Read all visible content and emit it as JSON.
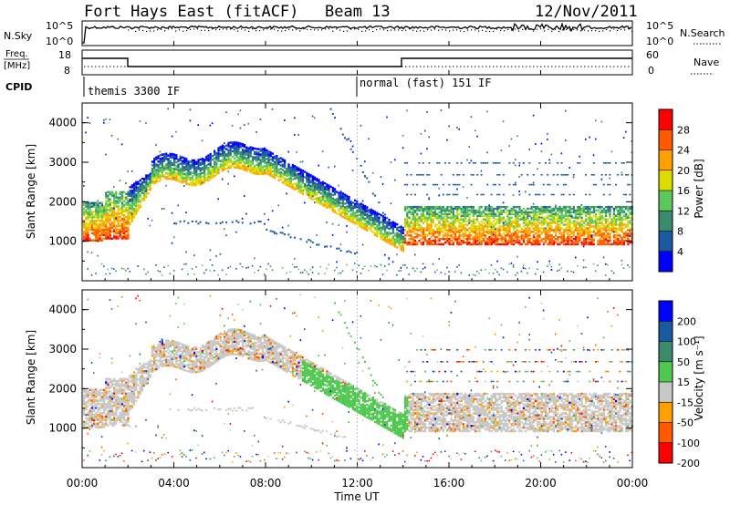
{
  "header": {
    "station": "Fort Hays East (fitACF)",
    "beam": "Beam 13",
    "date": "12/Nov/2011"
  },
  "noise_panel": {
    "left_label": "N.Sky",
    "right_label": "N.Search",
    "left_ticks": [
      "10^5",
      "10^0"
    ],
    "right_ticks": [
      "10^5",
      "10^0"
    ]
  },
  "freq_panel": {
    "left_label_line1": "Freq.",
    "left_label_line2": "[MHz]",
    "right_label": "Nave",
    "left_ticks": [
      "18",
      "8"
    ],
    "right_ticks": [
      "60",
      "0"
    ]
  },
  "cpid": {
    "label": "CPID",
    "segments": [
      {
        "start_ut": "00:00",
        "name": "themis 3300 IF"
      },
      {
        "start_ut": "12:00",
        "name": "normal (fast) 151 IF"
      }
    ]
  },
  "chart_data": [
    {
      "type": "heatmap",
      "name": "power",
      "ylabel": "Slant Range [km]",
      "xlabel": "Time UT",
      "x_range_ut": [
        0,
        24
      ],
      "ylim_km": [
        0,
        4500
      ],
      "y_ticks": [
        "1000",
        "2000",
        "3000",
        "4000"
      ],
      "colorbar": {
        "label": "Power [dB]",
        "ticks": [
          "28",
          "24",
          "20",
          "16",
          "12",
          "8",
          "4"
        ],
        "colors": [
          "#ff0000",
          "#ff5a00",
          "#ffa000",
          "#dcdc00",
          "#5ac85a",
          "#3a8a6e",
          "#1a5aa0",
          "#0000ff"
        ]
      }
    },
    {
      "type": "heatmap",
      "name": "velocity",
      "ylabel": "Slant Range [km]",
      "xlabel": "Time UT",
      "x_range_ut": [
        0,
        24
      ],
      "ylim_km": [
        0,
        4500
      ],
      "y_ticks": [
        "1000",
        "2000",
        "3000",
        "4000"
      ],
      "colorbar": {
        "label": "Velocity [m s⁻¹]",
        "ticks": [
          "200",
          "100",
          "50",
          "15",
          "-15",
          "-50",
          "-100",
          "-200"
        ],
        "colors": [
          "#0000ff",
          "#1a5aa0",
          "#3a8a6e",
          "#50c850",
          "#c8c8c8",
          "#ffa000",
          "#ff5a00",
          "#ff0000"
        ]
      }
    }
  ],
  "time_axis": {
    "label": "Time UT",
    "ticks": [
      "00:00",
      "04:00",
      "08:00",
      "12:00",
      "16:00",
      "20:00",
      "00:00"
    ]
  }
}
